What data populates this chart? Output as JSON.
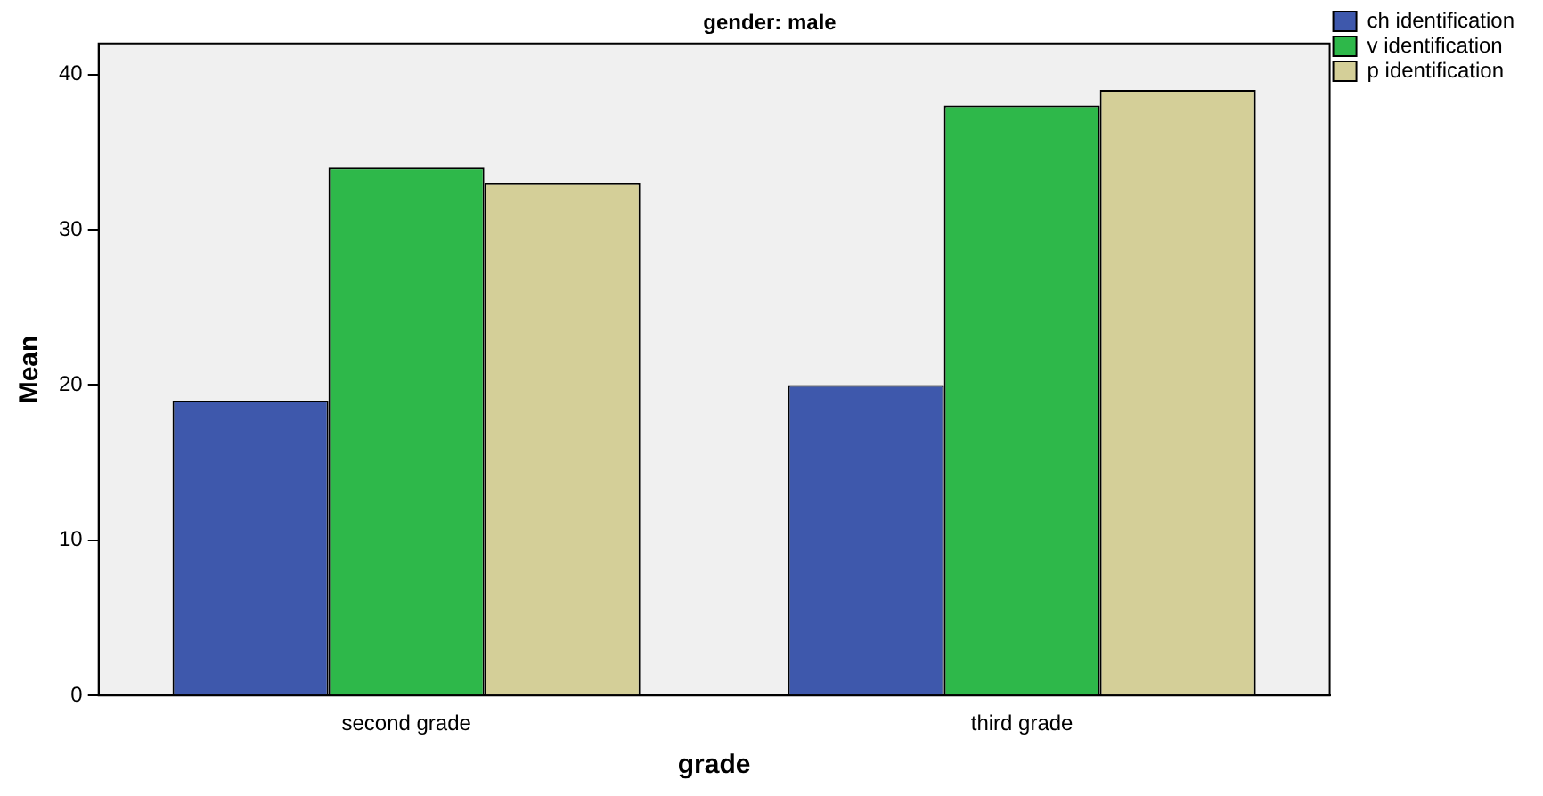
{
  "chart_data": {
    "type": "bar",
    "title": "gender: male",
    "xlabel": "grade",
    "ylabel": "Mean",
    "categories": [
      "second grade",
      "third grade"
    ],
    "series": [
      {
        "name": "ch identification",
        "color": "#3e58ac",
        "values": [
          19,
          20
        ]
      },
      {
        "name": "v identification",
        "color": "#2eb84a",
        "values": [
          34,
          38
        ]
      },
      {
        "name": "p identification",
        "color": "#d4cf98",
        "values": [
          33,
          39
        ]
      }
    ],
    "ylim": [
      0,
      42
    ],
    "yticks": [
      0,
      10,
      20,
      30,
      40
    ],
    "grid": false,
    "legend": "top right"
  }
}
